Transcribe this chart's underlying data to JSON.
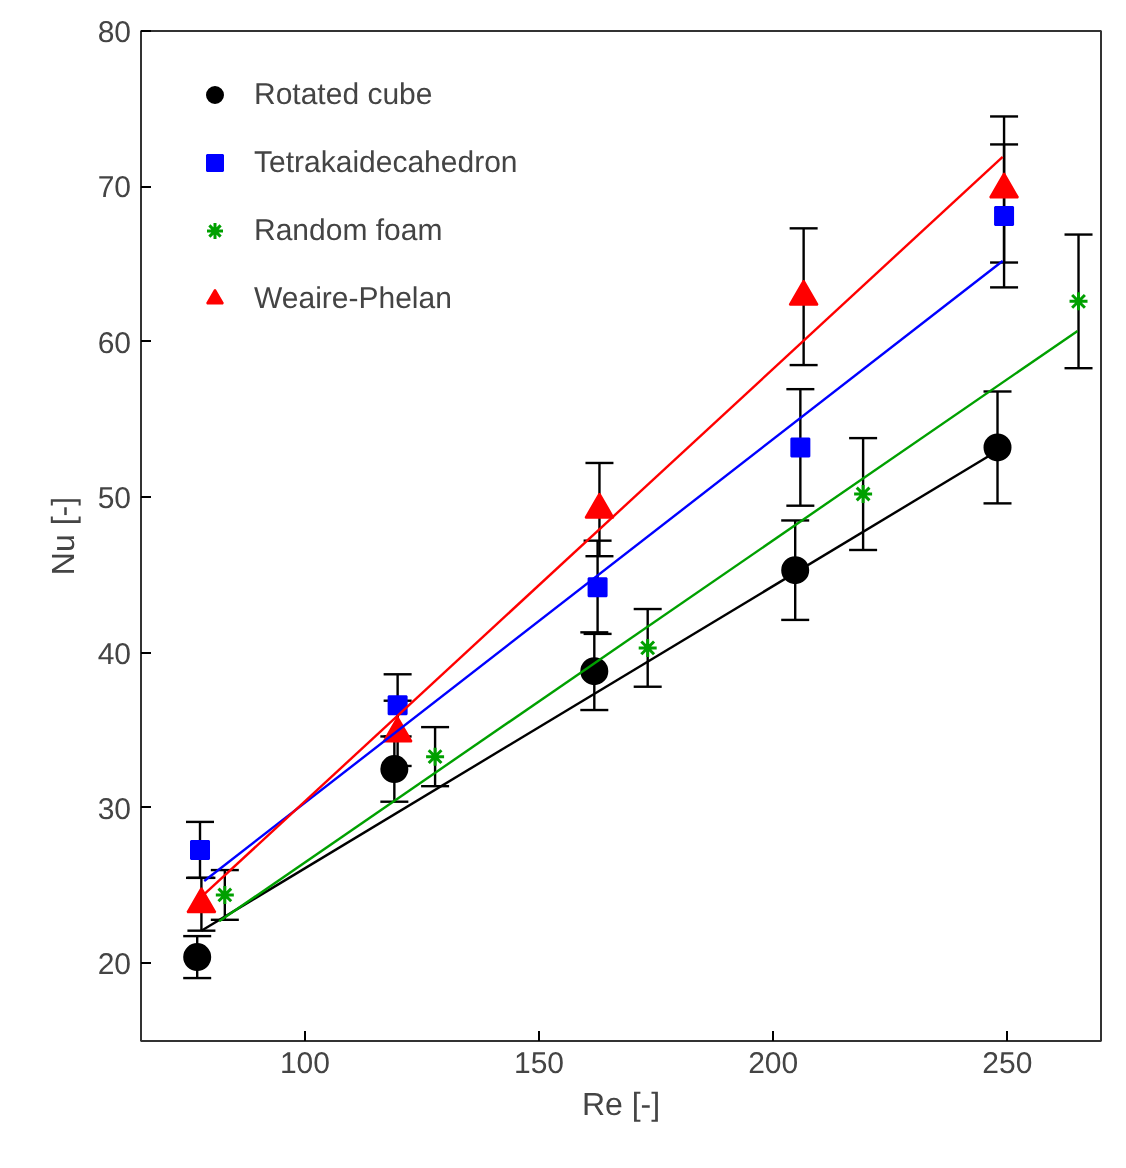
{
  "chart_data": {
    "type": "scatter",
    "xlabel": "Re [-]",
    "ylabel": "Nu [-]",
    "xlim": [
      65,
      270
    ],
    "ylim": [
      15,
      80
    ],
    "xticks": [
      100,
      150,
      200,
      250
    ],
    "yticks": [
      20,
      30,
      40,
      50,
      60,
      70,
      80
    ],
    "grid": false,
    "legend": "top left",
    "series": [
      {
        "name": "Rotated cube",
        "color": "#000000",
        "marker": "circle",
        "x": [
          77.0,
          119.1,
          161.8,
          204.7,
          247.9
        ],
        "values": [
          20.4,
          32.5,
          38.8,
          45.3,
          53.2
        ],
        "errors": [
          1.35,
          2.1,
          2.5,
          3.2,
          3.6
        ]
      },
      {
        "name": "Tetrakaidecahedron",
        "color": "#0000ff",
        "marker": "square",
        "x": [
          77.6,
          119.8,
          162.5,
          205.8,
          249.3
        ],
        "values": [
          27.3,
          36.6,
          44.2,
          53.2,
          68.1
        ],
        "errors": [
          1.8,
          2.0,
          3.0,
          3.75,
          4.6
        ]
      },
      {
        "name": "Random foam",
        "color": "#00a000",
        "marker": "cross",
        "x": [
          82.9,
          127.8,
          173.2,
          219.2,
          265.2
        ],
        "values": [
          24.4,
          33.3,
          40.3,
          50.2,
          62.6
        ],
        "errors": [
          1.6,
          1.9,
          2.5,
          3.6,
          4.3
        ]
      },
      {
        "name": "Weaire-Phelan",
        "color": "#ff0000",
        "marker": "triangle",
        "x": [
          77.9,
          119.8,
          162.9,
          206.5,
          249.3
        ],
        "values": [
          23.8,
          34.8,
          49.2,
          62.9,
          69.8
        ],
        "errors": [
          1.7,
          2.1,
          3.0,
          4.4,
          4.7
        ]
      },
      {
        "type": "line",
        "color": "#000000",
        "x": [
          77.9,
          248
        ],
        "values": [
          22.1,
          53.0
        ]
      },
      {
        "type": "line",
        "color": "#0000ff",
        "x": [
          78.5,
          249
        ],
        "values": [
          25.3,
          65.2
        ]
      },
      {
        "type": "line",
        "color": "#00a000",
        "x": [
          81.7,
          265
        ],
        "values": [
          22.7,
          60.7
        ]
      },
      {
        "type": "line",
        "color": "#ff0000",
        "x": [
          78,
          249
        ],
        "values": [
          24.3,
          71.9
        ]
      }
    ]
  }
}
